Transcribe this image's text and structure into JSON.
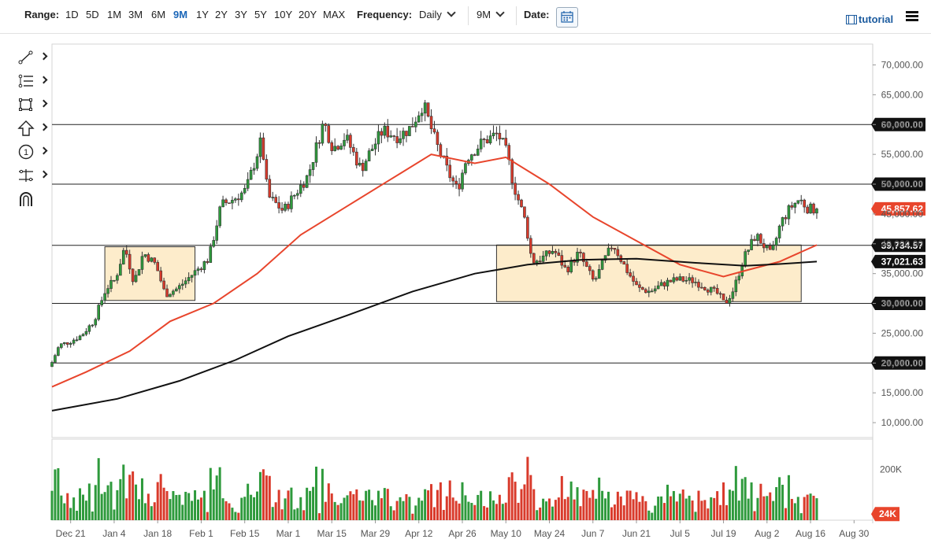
{
  "toolbar": {
    "range_label": "Range:",
    "ranges": [
      "1D",
      "5D",
      "1M",
      "3M",
      "6M",
      "9M",
      "1Y",
      "2Y",
      "3Y",
      "5Y",
      "10Y",
      "20Y",
      "MAX"
    ],
    "active_range": "9M",
    "frequency_label": "Frequency:",
    "frequency_value": "Daily",
    "period_value": "9M",
    "date_label": "Date:",
    "tutorial_label": "tutorial"
  },
  "tools": [
    "line-tool-icon",
    "fibonacci-tool-icon",
    "rectangle-tool-icon",
    "arrow-tool-icon",
    "number-marker-icon",
    "measure-tool-icon",
    "magnet-icon"
  ],
  "colors": {
    "up": "#2e9a3c",
    "down": "#d93a2b",
    "ma_fast": "#e8452c",
    "ma_slow": "#111111",
    "zone_fill": "#fdeccb",
    "price_badge": "#e8452c",
    "level_badge": "#111111"
  },
  "chart_data": {
    "type": "candlestick",
    "x_ticks": [
      "Dec 21",
      "Jan 4",
      "Jan 18",
      "Feb 1",
      "Feb 15",
      "Mar 1",
      "Mar 15",
      "Mar 29",
      "Apr 12",
      "Apr 26",
      "May 10",
      "May 24",
      "Jun 7",
      "Jun 21",
      "Jul 5",
      "Jul 19",
      "Aug 2",
      "Aug 16",
      "Aug 30"
    ],
    "y_ticks": [
      "70,000.00",
      "65,000.00",
      "60,000.00",
      "55,000.00",
      "50,000.00",
      "45,000.00",
      "40,000.00",
      "35,000.00",
      "30,000.00",
      "25,000.00",
      "20,000.00",
      "15,000.00",
      "10,000.00"
    ],
    "y_tick_values": [
      70000,
      65000,
      60000,
      55000,
      50000,
      45000,
      40000,
      35000,
      30000,
      25000,
      20000,
      15000,
      10000
    ],
    "ylim": [
      7500,
      73500
    ],
    "x_start": "2020-12-15",
    "x_end": "2021-09-05",
    "horizontal_levels": [
      {
        "value": 60000,
        "label": "60,000.00"
      },
      {
        "value": 50000,
        "label": "50,000.00"
      },
      {
        "value": 39734.57,
        "label": "39,734.57"
      },
      {
        "value": 30000,
        "label": "30,000.00"
      },
      {
        "value": 20000,
        "label": "20,000.00"
      }
    ],
    "current_price": {
      "value": 45857.62,
      "label": "45,857.62"
    },
    "ma_slow_last": {
      "value": 37021.63,
      "label": "37,021.63"
    },
    "zones": [
      {
        "from": "2021-01-01",
        "to": "2021-01-30",
        "low": 30500,
        "high": 39500
      },
      {
        "from": "2021-05-07",
        "to": "2021-08-13",
        "low": 30300,
        "high": 39800
      }
    ],
    "price_anchors": [
      [
        "2020-12-15",
        19400
      ],
      [
        "2020-12-18",
        23000
      ],
      [
        "2020-12-21",
        23500
      ],
      [
        "2020-12-25",
        24600
      ],
      [
        "2020-12-29",
        27000
      ],
      [
        "2021-01-02",
        32500
      ],
      [
        "2021-01-05",
        34000
      ],
      [
        "2021-01-08",
        39500
      ],
      [
        "2021-01-11",
        33500
      ],
      [
        "2021-01-14",
        38500
      ],
      [
        "2021-01-18",
        36500
      ],
      [
        "2021-01-21",
        31500
      ],
      [
        "2021-01-25",
        32500
      ],
      [
        "2021-01-29",
        34500
      ],
      [
        "2021-02-04",
        37500
      ],
      [
        "2021-02-08",
        46500
      ],
      [
        "2021-02-12",
        47500
      ],
      [
        "2021-02-16",
        49000
      ],
      [
        "2021-02-21",
        57500
      ],
      [
        "2021-02-23",
        48000
      ],
      [
        "2021-02-28",
        45500
      ],
      [
        "2021-03-04",
        48500
      ],
      [
        "2021-03-08",
        51500
      ],
      [
        "2021-03-13",
        60500
      ],
      [
        "2021-03-16",
        56000
      ],
      [
        "2021-03-20",
        58000
      ],
      [
        "2021-03-25",
        52500
      ],
      [
        "2021-03-28",
        55500
      ],
      [
        "2021-04-01",
        59000
      ],
      [
        "2021-04-06",
        58000
      ],
      [
        "2021-04-10",
        59500
      ],
      [
        "2021-04-14",
        63500
      ],
      [
        "2021-04-18",
        57000
      ],
      [
        "2021-04-22",
        52000
      ],
      [
        "2021-04-25",
        49000
      ],
      [
        "2021-04-28",
        54500
      ],
      [
        "2021-05-03",
        57000
      ],
      [
        "2021-05-08",
        58500
      ],
      [
        "2021-05-11",
        55000
      ],
      [
        "2021-05-13",
        50000
      ],
      [
        "2021-05-17",
        43500
      ],
      [
        "2021-05-19",
        37000
      ],
      [
        "2021-05-22",
        37500
      ],
      [
        "2021-05-26",
        39000
      ],
      [
        "2021-05-30",
        35500
      ],
      [
        "2021-06-03",
        38500
      ],
      [
        "2021-06-08",
        33500
      ],
      [
        "2021-06-11",
        37000
      ],
      [
        "2021-06-14",
        40000
      ],
      [
        "2021-06-18",
        36000
      ],
      [
        "2021-06-22",
        32500
      ],
      [
        "2021-06-26",
        32000
      ],
      [
        "2021-07-01",
        33500
      ],
      [
        "2021-07-05",
        34000
      ],
      [
        "2021-07-10",
        33800
      ],
      [
        "2021-07-14",
        32700
      ],
      [
        "2021-07-18",
        31500
      ],
      [
        "2021-07-20",
        29800
      ],
      [
        "2021-07-23",
        32500
      ],
      [
        "2021-07-26",
        37500
      ],
      [
        "2021-07-30",
        41500
      ],
      [
        "2021-08-04",
        38000
      ],
      [
        "2021-08-07",
        43500
      ],
      [
        "2021-08-10",
        46000
      ],
      [
        "2021-08-13",
        47500
      ],
      [
        "2021-08-16",
        45800
      ],
      [
        "2021-08-18",
        45857.62
      ]
    ],
    "ma_fast": [
      [
        "2020-12-15",
        16000
      ],
      [
        "2020-12-26",
        18500
      ],
      [
        "2021-01-09",
        22000
      ],
      [
        "2021-01-22",
        27000
      ],
      [
        "2021-02-05",
        30000
      ],
      [
        "2021-02-19",
        35000
      ],
      [
        "2021-03-05",
        41500
      ],
      [
        "2021-03-19",
        46000
      ],
      [
        "2021-04-02",
        50500
      ],
      [
        "2021-04-16",
        55000
      ],
      [
        "2021-04-30",
        53500
      ],
      [
        "2021-05-10",
        54500
      ],
      [
        "2021-05-24",
        50000
      ],
      [
        "2021-06-07",
        44500
      ],
      [
        "2021-06-21",
        40500
      ],
      [
        "2021-07-05",
        36500
      ],
      [
        "2021-07-19",
        34500
      ],
      [
        "2021-07-26",
        35500
      ],
      [
        "2021-08-06",
        37000
      ],
      [
        "2021-08-18",
        39800
      ]
    ],
    "ma_slow": [
      [
        "2020-12-15",
        12000
      ],
      [
        "2021-01-05",
        14000
      ],
      [
        "2021-01-25",
        17000
      ],
      [
        "2021-02-12",
        20500
      ],
      [
        "2021-03-01",
        24500
      ],
      [
        "2021-03-20",
        28000
      ],
      [
        "2021-04-10",
        32000
      ],
      [
        "2021-04-30",
        35000
      ],
      [
        "2021-05-17",
        36500
      ],
      [
        "2021-06-03",
        37300
      ],
      [
        "2021-06-21",
        37500
      ],
      [
        "2021-07-10",
        36800
      ],
      [
        "2021-07-26",
        36300
      ],
      [
        "2021-08-06",
        36600
      ],
      [
        "2021-08-18",
        37021.63
      ]
    ],
    "volume": {
      "last_label": "24K",
      "y_tick_label": "200K",
      "y_tick_value": 200000,
      "max": 300000
    }
  }
}
